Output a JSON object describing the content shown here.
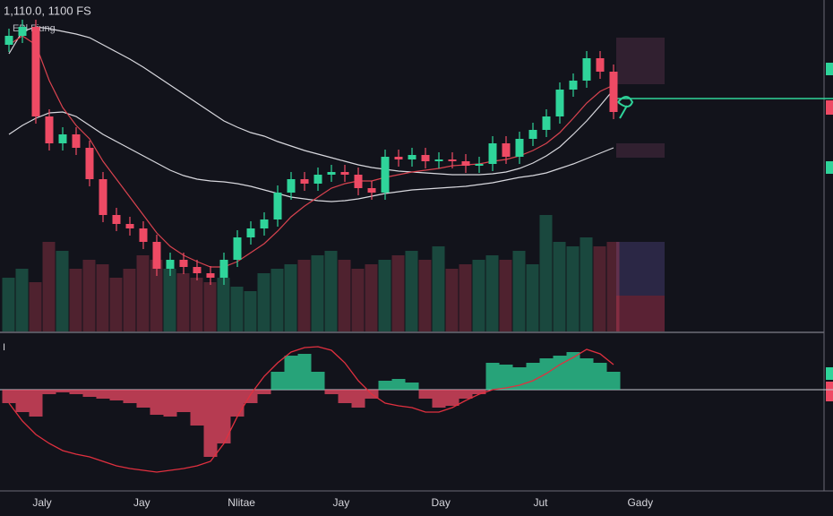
{
  "chart_data": {
    "type": "candlestick",
    "title": "1,110.0, 1100 FS",
    "subtitle": "EBl Fiung",
    "x_labels": [
      "Jaly",
      "Jay",
      "Nlitae",
      "Jay",
      "Day",
      "Jut",
      "Gady"
    ],
    "ylim": [
      0,
      370
    ],
    "up_color": "#2fd49a",
    "down_color": "#ee4a64",
    "open": [
      320,
      330,
      340,
      240,
      210,
      220,
      205,
      170,
      130,
      120,
      115,
      100,
      70,
      80,
      72,
      65,
      60,
      80,
      105,
      115,
      125,
      155,
      170,
      165,
      175,
      178,
      175,
      160,
      155,
      195,
      192,
      197,
      190,
      192,
      190,
      185,
      187,
      210,
      195,
      215,
      225,
      240,
      270,
      280,
      305,
      290
    ],
    "high": [
      338,
      348,
      348,
      248,
      228,
      228,
      213,
      178,
      138,
      128,
      123,
      108,
      88,
      88,
      80,
      73,
      88,
      113,
      123,
      133,
      163,
      178,
      178,
      183,
      186,
      186,
      183,
      168,
      203,
      203,
      205,
      205,
      200,
      200,
      198,
      195,
      218,
      218,
      223,
      233,
      248,
      278,
      288,
      313,
      313,
      298
    ],
    "low": [
      312,
      322,
      232,
      202,
      202,
      197,
      162,
      122,
      112,
      107,
      92,
      62,
      62,
      64,
      57,
      52,
      52,
      72,
      97,
      107,
      117,
      147,
      157,
      157,
      167,
      167,
      152,
      147,
      147,
      184,
      184,
      182,
      182,
      182,
      177,
      177,
      179,
      187,
      187,
      207,
      217,
      232,
      262,
      272,
      282,
      237
    ],
    "close": [
      330,
      340,
      240,
      210,
      220,
      205,
      170,
      130,
      120,
      115,
      100,
      70,
      80,
      72,
      65,
      60,
      80,
      105,
      115,
      125,
      155,
      170,
      165,
      175,
      178,
      175,
      160,
      155,
      195,
      192,
      197,
      190,
      192,
      190,
      185,
      187,
      210,
      195,
      215,
      225,
      240,
      270,
      280,
      305,
      290,
      245
    ],
    "moving_averages": [
      {
        "color": "#d8d8de",
        "values": [
          310,
          335,
          340,
          338,
          335,
          332,
          328,
          320,
          312,
          304,
          295,
          285,
          275,
          265,
          255,
          245,
          235,
          228,
          222,
          218,
          212,
          207,
          202,
          198,
          194,
          190,
          186,
          183,
          181,
          179,
          178,
          177,
          176,
          175,
          175,
          175,
          176,
          178,
          182,
          188,
          196,
          206,
          220,
          235,
          252,
          270
        ]
      },
      {
        "color": "#d8d8de",
        "values": [
          220,
          230,
          238,
          244,
          245,
          240,
          230,
          220,
          212,
          204,
          196,
          188,
          180,
          174,
          170,
          168,
          167,
          165,
          162,
          158,
          154,
          150,
          148,
          146,
          145,
          146,
          148,
          151,
          154,
          156,
          158,
          159,
          160,
          161,
          162,
          164,
          166,
          169,
          172,
          174,
          177,
          182,
          187,
          193,
          199,
          205
        ]
      },
      {
        "color": "#d9434f",
        "values": [
          320,
          330,
          320,
          280,
          250,
          230,
          215,
          190,
          170,
          150,
          130,
          110,
          95,
          85,
          78,
          72,
          72,
          78,
          88,
          98,
          112,
          128,
          140,
          150,
          160,
          165,
          168,
          168,
          172,
          175,
          178,
          180,
          182,
          185,
          186,
          187,
          190,
          192,
          196,
          202,
          210,
          222,
          238,
          255,
          268,
          275
        ]
      }
    ],
    "volume": {
      "ylim": [
        0,
        370
      ],
      "values": [
        60,
        70,
        55,
        100,
        90,
        70,
        80,
        75,
        60,
        70,
        85,
        80,
        70,
        65,
        60,
        55,
        60,
        50,
        45,
        65,
        70,
        75,
        80,
        85,
        90,
        80,
        70,
        75,
        80,
        85,
        90,
        80,
        95,
        70,
        75,
        80,
        85,
        80,
        90,
        75,
        130,
        100,
        95,
        105,
        95,
        100
      ]
    },
    "price_line": 260,
    "price_line_color": "#2fd49a",
    "macd": {
      "label": "I",
      "ylim": [
        -110,
        55
      ],
      "signal_color": "#e0303f",
      "histogram": [
        -15,
        -25,
        -30,
        -5,
        -3,
        -5,
        -8,
        -10,
        -12,
        -15,
        -20,
        -28,
        -30,
        -25,
        -40,
        -75,
        -60,
        -30,
        -15,
        -5,
        20,
        38,
        40,
        20,
        -5,
        -15,
        -20,
        -10,
        10,
        12,
        8,
        -10,
        -20,
        -18,
        -10,
        -5,
        30,
        28,
        25,
        30,
        35,
        38,
        42,
        35,
        30,
        20
      ],
      "signal": [
        -15,
        -35,
        -50,
        -60,
        -68,
        -72,
        -75,
        -80,
        -85,
        -88,
        -90,
        -92,
        -90,
        -88,
        -85,
        -80,
        -60,
        -30,
        -5,
        15,
        30,
        42,
        47,
        48,
        44,
        30,
        10,
        -5,
        -15,
        -18,
        -20,
        -25,
        -25,
        -20,
        -12,
        -5,
        0,
        2,
        5,
        10,
        18,
        28,
        36,
        45,
        40,
        28
      ]
    }
  }
}
